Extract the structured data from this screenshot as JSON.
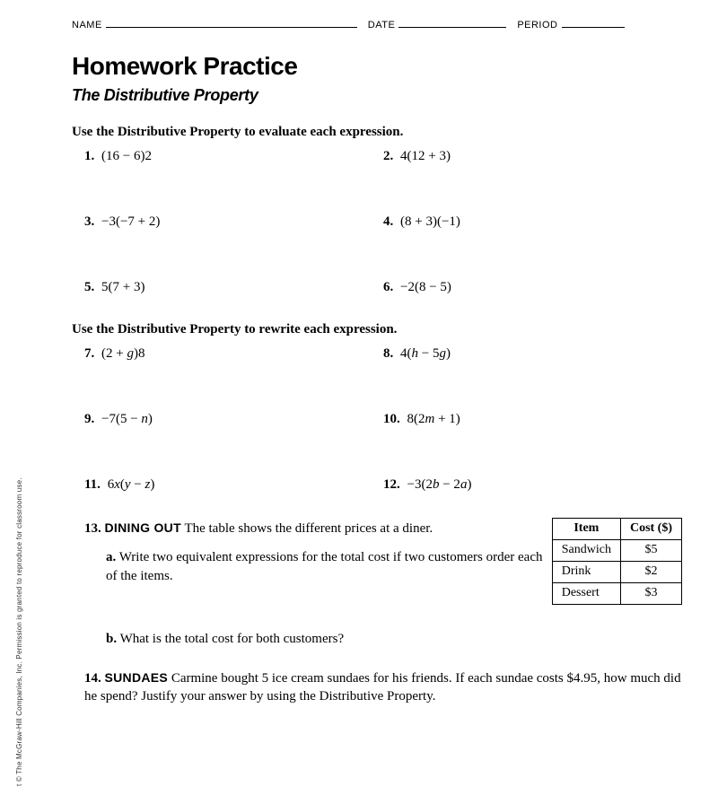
{
  "header": {
    "name_label": "NAME",
    "date_label": "DATE",
    "period_label": "PERIOD"
  },
  "title": {
    "main": "Homework Practice",
    "sub": "The Distributive Property"
  },
  "section1": {
    "instr": "Use the Distributive Property to evaluate each expression.",
    "p1": {
      "num": "1.",
      "expr": "(16 − 6)2"
    },
    "p2": {
      "num": "2.",
      "expr": "4(12 + 3)"
    },
    "p3": {
      "num": "3.",
      "expr": "−3(−7 + 2)"
    },
    "p4": {
      "num": "4.",
      "expr": "(8 + 3)(−1)"
    },
    "p5": {
      "num": "5.",
      "expr": "5(7 + 3)"
    },
    "p6": {
      "num": "6.",
      "expr": "−2(8 − 5)"
    }
  },
  "section2": {
    "instr": "Use the Distributive Property to rewrite each expression.",
    "p7": {
      "num": "7.",
      "expr_html": "(2 + <i>g</i>)8"
    },
    "p8": {
      "num": "8.",
      "expr_html": "4(<i>h</i> − 5<i>g</i>)"
    },
    "p9": {
      "num": "9.",
      "expr_html": "−7(5 − <i>n</i>)"
    },
    "p10": {
      "num": "10.",
      "expr_html": "8(2<i>m</i> + 1)"
    },
    "p11": {
      "num": "11.",
      "expr_html": "6<i>x</i>(<i>y</i> − <i>z</i>)"
    },
    "p12": {
      "num": "12.",
      "expr_html": "−3(2<i>b</i> − 2<i>a</i>)"
    }
  },
  "p13": {
    "num": "13.",
    "caps": "DINING OUT",
    "text": "The table shows the different prices at a diner.",
    "a": {
      "num": "a.",
      "text": "Write two equivalent expressions for the total cost if two customers order each of the items."
    },
    "b": {
      "num": "b.",
      "text": "What is the total cost for both customers?"
    },
    "table": {
      "head_item": "Item",
      "head_cost": "Cost ($)",
      "rows": [
        {
          "item": "Sandwich",
          "cost": "$5"
        },
        {
          "item": "Drink",
          "cost": "$2"
        },
        {
          "item": "Dessert",
          "cost": "$3"
        }
      ]
    }
  },
  "p14": {
    "num": "14.",
    "caps": "SUNDAES",
    "text": "Carmine bought 5 ice cream sundaes for his friends. If each sundae costs $4.95, how much did he spend? Justify your answer by using the Distributive Property."
  },
  "copyright": "t © The McGraw-Hill Companies, Inc. Permission is granted to reproduce for classroom use."
}
